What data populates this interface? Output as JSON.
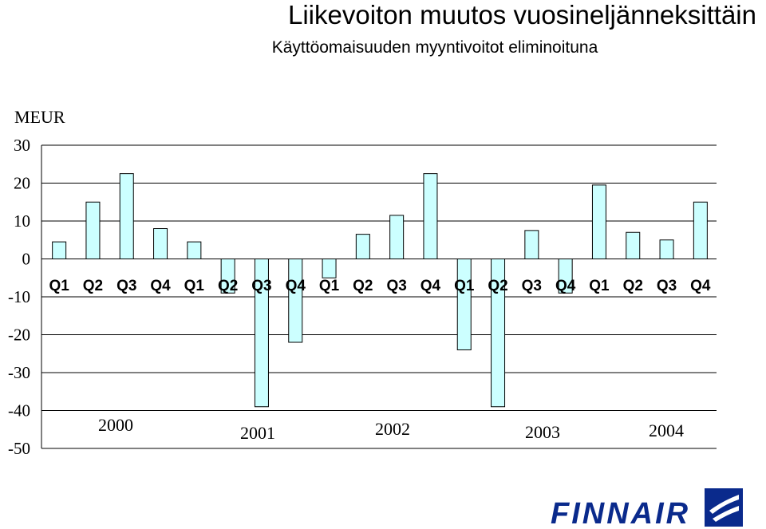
{
  "header": {
    "title": "Liikevoiton muutos vuosineljänneksittäin",
    "subtitle": "Käyttöomaisuuden myyntivoitot eliminoituna"
  },
  "chart_data": {
    "type": "bar",
    "title": "Liikevoiton muutos vuosineljänneksittäin",
    "subtitle": "Käyttöomaisuuden myyntivoitot eliminoituna",
    "ylabel": "MEUR",
    "xlabel": "",
    "ylim": [
      -50,
      30
    ],
    "yticks": [
      "30",
      "20",
      "10",
      "0",
      "-10",
      "-20",
      "-30",
      "-40",
      "-50"
    ],
    "categories": [
      "Q1",
      "Q2",
      "Q3",
      "Q4",
      "Q1",
      "Q2",
      "Q3",
      "Q4",
      "Q1",
      "Q2",
      "Q3",
      "Q4",
      "Q1",
      "Q2",
      "Q3",
      "Q4",
      "Q1",
      "Q2",
      "Q3",
      "Q4"
    ],
    "years": [
      "2000",
      "2001",
      "2002",
      "2003",
      "2004"
    ],
    "values": [
      4.5,
      15,
      22.5,
      8,
      4.5,
      -9,
      -39,
      -22,
      -5,
      6.5,
      11.5,
      22.5,
      -24,
      -39,
      7.5,
      -9,
      19.5,
      7,
      5,
      15
    ],
    "bar_color": "#ccffff",
    "bar_stroke": "#000000",
    "grid": true
  },
  "logo": {
    "text": "FINNAIR",
    "color": "#0a2a8c"
  }
}
